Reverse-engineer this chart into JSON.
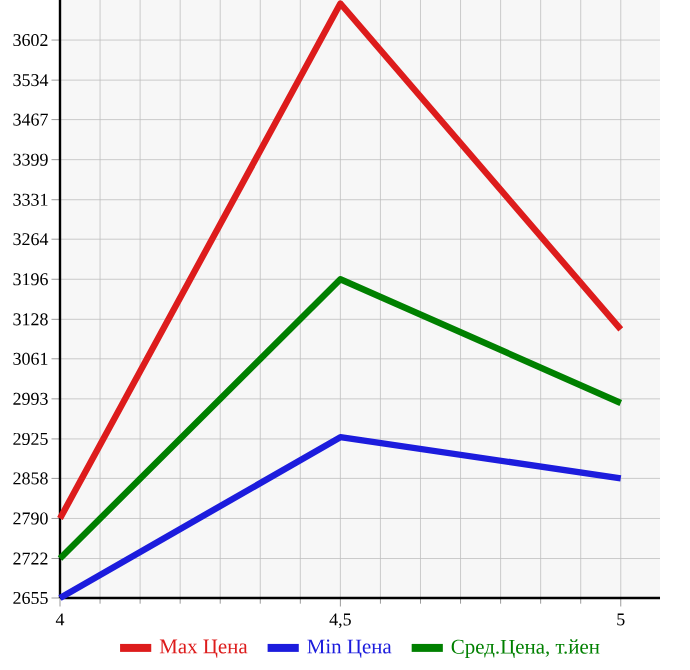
{
  "chart_data": {
    "type": "line",
    "x": [
      4,
      4.5,
      5
    ],
    "series": [
      {
        "name": "Max Цена",
        "color": "#dd1c1c",
        "values": [
          2790,
          3664,
          3111
        ]
      },
      {
        "name": "Min Цена",
        "color": "#1c1cdd",
        "values": [
          2655,
          2928,
          2858
        ]
      },
      {
        "name": "Сред.Цена, т.йен",
        "color": "#008000",
        "values": [
          2722,
          3196,
          2986
        ]
      }
    ],
    "xlim": [
      4,
      5.07
    ],
    "ylim": [
      2655,
      3670
    ],
    "xticks": [
      4,
      {
        "value": 4.5,
        "label": "4,5"
      },
      5
    ],
    "yticks": [
      2655,
      2722,
      2790,
      2858,
      2925,
      2993,
      3061,
      3128,
      3196,
      3264,
      3331,
      3399,
      3467,
      3534,
      3602
    ],
    "grid": true,
    "legend": "bottom",
    "marker": "none",
    "line_style": "solid"
  }
}
